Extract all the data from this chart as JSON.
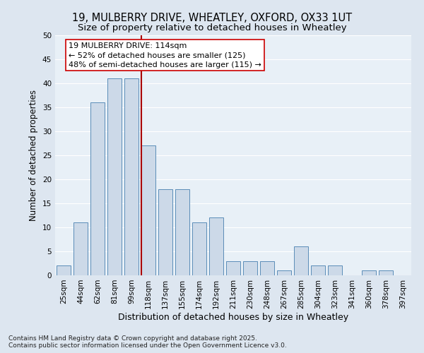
{
  "title_line1": "19, MULBERRY DRIVE, WHEATLEY, OXFORD, OX33 1UT",
  "title_line2": "Size of property relative to detached houses in Wheatley",
  "xlabel": "Distribution of detached houses by size in Wheatley",
  "ylabel": "Number of detached properties",
  "bin_labels": [
    "25sqm",
    "44sqm",
    "62sqm",
    "81sqm",
    "99sqm",
    "118sqm",
    "137sqm",
    "155sqm",
    "174sqm",
    "192sqm",
    "211sqm",
    "230sqm",
    "248sqm",
    "267sqm",
    "285sqm",
    "304sqm",
    "323sqm",
    "341sqm",
    "360sqm",
    "378sqm",
    "397sqm"
  ],
  "bin_values": [
    2,
    11,
    36,
    41,
    41,
    27,
    18,
    18,
    11,
    12,
    3,
    3,
    3,
    1,
    6,
    2,
    2,
    0,
    1,
    1,
    0
  ],
  "bar_color": "#ccd9e8",
  "bar_edge_color": "#5b8db8",
  "vline_x_index": 5,
  "vline_color": "#aa0000",
  "annotation_text": "19 MULBERRY DRIVE: 114sqm\n← 52% of detached houses are smaller (125)\n48% of semi-detached houses are larger (115) →",
  "annotation_box_color": "#ffffff",
  "annotation_box_edge_color": "#cc0000",
  "ylim": [
    0,
    50
  ],
  "yticks": [
    0,
    5,
    10,
    15,
    20,
    25,
    30,
    35,
    40,
    45,
    50
  ],
  "footnote": "Contains HM Land Registry data © Crown copyright and database right 2025.\nContains public sector information licensed under the Open Government Licence v3.0.",
  "background_color": "#dde6f0",
  "plot_background_color": "#e8f0f7",
  "grid_color": "#ffffff",
  "title_fontsize": 10.5,
  "subtitle_fontsize": 9.5,
  "axis_label_fontsize": 8.5,
  "tick_fontsize": 7.5,
  "annotation_fontsize": 8,
  "footnote_fontsize": 6.5
}
